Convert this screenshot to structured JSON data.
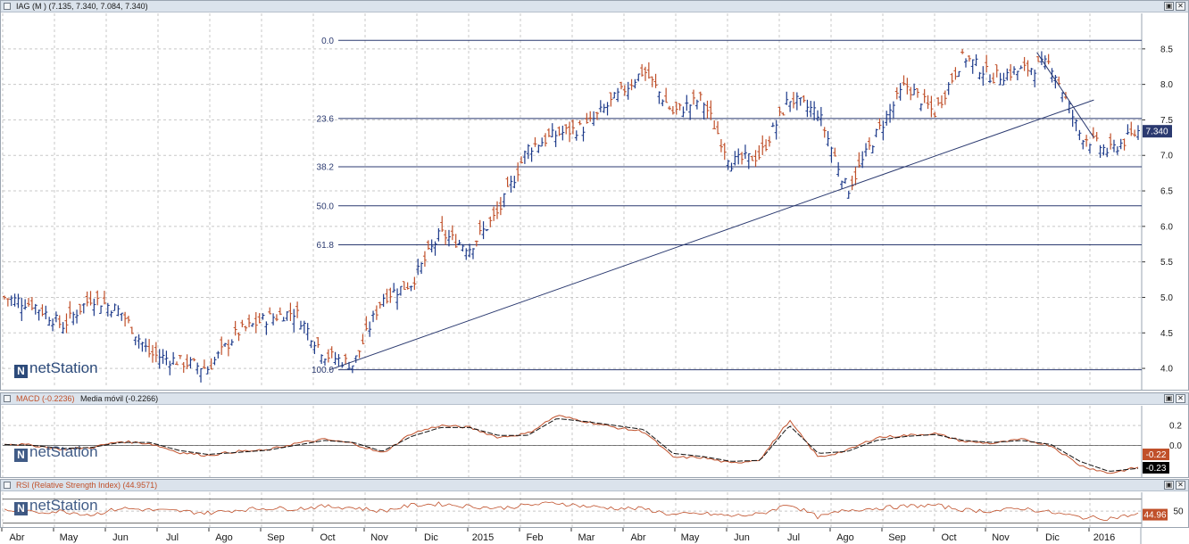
{
  "panes": {
    "price": {
      "title": "IAG (M ) (7.135, 7.340, 7.084, 7.340)",
      "last_value": "7.340",
      "y_ticks": [
        "8.5",
        "8.0",
        "7.5",
        "7.0",
        "6.5",
        "6.0",
        "5.5",
        "5.0",
        "4.5",
        "4.0"
      ],
      "fib_labels": [
        "0.0",
        "23.6",
        "38.2",
        "50.0",
        "61.8",
        "100.0"
      ],
      "logo": "netStation"
    },
    "macd": {
      "title_a": "MACD (-0.2236)",
      "title_b": "Media móvil (-0.2266)",
      "y_ticks": [
        "0.2",
        "0.0"
      ],
      "value_a": "-0.22",
      "value_b": "-0.23",
      "logo": "netStation"
    },
    "rsi": {
      "title": "RSI (Relative Strength Index) (44.9571)",
      "y_ticks": [
        "50"
      ],
      "value": "44.96",
      "logo": "netStation"
    }
  },
  "x_labels": [
    "Abr",
    "May",
    "Jun",
    "Jul",
    "Ago",
    "Sep",
    "Oct",
    "Nov",
    "Dic",
    "2015",
    "Feb",
    "Mar",
    "Abr",
    "May",
    "Jun",
    "Jul",
    "Ago",
    "Sep",
    "Oct",
    "Nov",
    "Dic",
    "2016"
  ],
  "window_buttons": {
    "restore": "▣",
    "close": "✕"
  },
  "colors": {
    "up_bar": "#1d3a8a",
    "down_bar": "#c0502a",
    "fib_line": "#2b3a70",
    "macd_line": "#c0502a",
    "signal_line": "#111111",
    "rsi_line": "#c0502a",
    "last_tag_bg": "#2b3a70",
    "neg_tag_bg": "#c0502a",
    "signal_tag_bg": "#000000",
    "grid": "#c8c8c8"
  },
  "chart_data": [
    {
      "type": "candlestick-bars",
      "title": "IAG (M )",
      "ohlc_last": {
        "open": 7.135,
        "high": 7.34,
        "low": 7.084,
        "close": 7.34
      },
      "ylim": [
        3.8,
        8.95
      ],
      "x": [
        "Abr",
        "May",
        "Jun",
        "Jul",
        "Ago",
        "Sep",
        "Oct",
        "Nov",
        "Dic",
        "2015",
        "Feb",
        "Mar",
        "Abr",
        "May",
        "Jun",
        "Jul",
        "Ago",
        "Sep",
        "Oct",
        "Nov",
        "Dic",
        "2016"
      ],
      "close_anchors": [
        5.0,
        4.9,
        4.6,
        5.0,
        4.8,
        4.2,
        4.1,
        4.0,
        4.5,
        4.7,
        4.8,
        4.2,
        4.05,
        5.0,
        5.2,
        5.9,
        5.7,
        6.2,
        7.1,
        7.3,
        7.4,
        7.8,
        8.2,
        7.6,
        7.8,
        6.9,
        7.0,
        7.8,
        7.6,
        6.5,
        7.3,
        8.0,
        7.6,
        8.4,
        8.1,
        8.2,
        8.3,
        7.3,
        7.05,
        7.34
      ],
      "fibonacci": [
        {
          "level": "0.0",
          "price": 8.62
        },
        {
          "level": "23.6",
          "price": 7.52
        },
        {
          "level": "38.2",
          "price": 6.84
        },
        {
          "level": "50.0",
          "price": 6.29
        },
        {
          "level": "61.8",
          "price": 5.74
        },
        {
          "level": "100.0",
          "price": 3.98
        }
      ],
      "trendlines": [
        {
          "from": {
            "x_frac": 0.287,
            "price": 3.98
          },
          "to": {
            "x_frac": 0.958,
            "price": 7.78
          }
        },
        {
          "from": {
            "x_frac": 0.908,
            "price": 8.45
          },
          "to": {
            "x_frac": 0.958,
            "price": 7.25
          }
        }
      ]
    },
    {
      "type": "line",
      "title": "MACD",
      "ylim": [
        -0.3,
        0.38
      ],
      "series": [
        {
          "name": "MACD",
          "values": [
            0.02,
            0.0,
            -0.04,
            -0.02,
            0.04,
            0.02,
            -0.07,
            -0.1,
            -0.06,
            -0.05,
            0.02,
            0.06,
            0.02,
            -0.08,
            0.12,
            0.2,
            0.18,
            0.08,
            0.12,
            0.3,
            0.24,
            0.18,
            0.14,
            -0.12,
            -0.12,
            -0.18,
            -0.14,
            0.25,
            -0.12,
            -0.05,
            0.08,
            0.1,
            0.12,
            0.04,
            0.02,
            0.06,
            0.0,
            -0.2,
            -0.28,
            -0.22
          ]
        },
        {
          "name": "Media móvil",
          "values": [
            0.01,
            0.0,
            -0.03,
            -0.02,
            0.03,
            0.03,
            -0.05,
            -0.09,
            -0.07,
            -0.05,
            0.0,
            0.05,
            0.03,
            -0.06,
            0.09,
            0.18,
            0.18,
            0.1,
            0.1,
            0.27,
            0.24,
            0.2,
            0.16,
            -0.08,
            -0.11,
            -0.16,
            -0.15,
            0.2,
            -0.08,
            -0.06,
            0.05,
            0.09,
            0.11,
            0.05,
            0.03,
            0.05,
            0.01,
            -0.16,
            -0.26,
            -0.23
          ]
        }
      ]
    },
    {
      "type": "line",
      "title": "RSI (Relative Strength Index)",
      "ylim": [
        25,
        80
      ],
      "values": [
        52,
        48,
        50,
        44,
        55,
        52,
        50,
        47,
        52,
        55,
        54,
        58,
        56,
        50,
        60,
        62,
        58,
        55,
        60,
        64,
        58,
        55,
        54,
        44,
        46,
        42,
        45,
        62,
        40,
        52,
        55,
        58,
        60,
        52,
        50,
        55,
        48,
        40,
        38,
        44.96
      ]
    }
  ]
}
